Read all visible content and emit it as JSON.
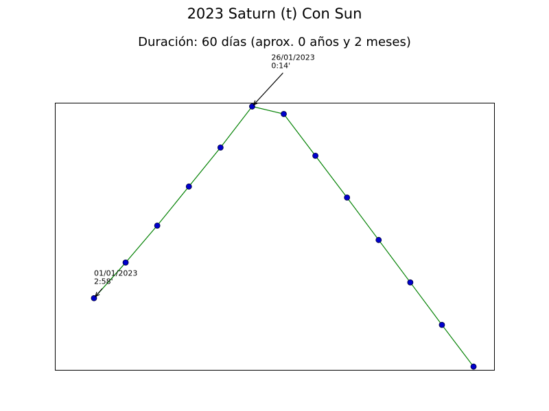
{
  "chart_data": {
    "type": "line",
    "title": "2023 Saturn (t) Con Sun",
    "subtitle": "Duración: 60 días (aprox. 0 años y 2 meses)",
    "x": [
      0,
      5,
      10,
      15,
      20,
      25,
      30,
      35,
      40,
      45,
      50,
      55,
      60
    ],
    "xlim": [
      -6.18,
      63.25
    ],
    "ylim": [
      3.99,
      0.18
    ],
    "series": [
      {
        "color": "#008000",
        "marker_color": "#0000cc",
        "values": [
          2.967,
          2.459,
          1.932,
          1.375,
          0.819,
          0.233,
          0.34,
          0.936,
          1.532,
          2.137,
          2.742,
          3.348,
          3.943
        ]
      }
    ],
    "annotations": [
      {
        "x": 0,
        "lines": [
          "01/01/2023",
          "2:58'"
        ]
      },
      {
        "x": 25,
        "lines": [
          "26/01/2023",
          "0:14'"
        ]
      }
    ]
  }
}
